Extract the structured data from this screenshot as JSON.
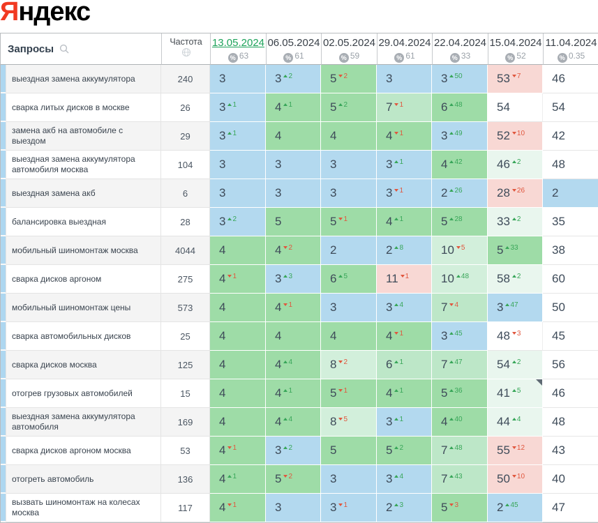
{
  "logo": {
    "part1": "Я",
    "part2": "ндекс"
  },
  "accent_colors": {
    "top3_blue": "#b3d9ef",
    "top10_green": "#9edca7",
    "mid_green": "#bde7c8",
    "low_green": "#d2efdb",
    "improved_pale": "#e9f6ee",
    "dropped_pink": "#f8d8d4",
    "change_up_green": "#38a659",
    "change_down_red": "#e0573e",
    "active_date_green": "#1ea35b",
    "yandex_red": "#f13a22"
  },
  "table": {
    "queries_header": "Запросы",
    "frequency_header": "Частота",
    "columns": [
      {
        "date": "13.05.2024",
        "visibility": "63",
        "active": true
      },
      {
        "date": "06.05.2024",
        "visibility": "61",
        "active": false
      },
      {
        "date": "02.05.2024",
        "visibility": "59",
        "active": false
      },
      {
        "date": "29.04.2024",
        "visibility": "61",
        "active": false
      },
      {
        "date": "22.04.2024",
        "visibility": "33",
        "active": false
      },
      {
        "date": "15.04.2024",
        "visibility": "52",
        "active": false
      },
      {
        "date": "11.04.2024",
        "visibility": "0.35",
        "active": false
      }
    ],
    "rows": [
      {
        "keyword": "выездная замена аккумулятора",
        "frequency": "240",
        "cells": [
          {
            "v": "3",
            "bg": "b"
          },
          {
            "v": "3",
            "bg": "b",
            "c": "2",
            "d": "u"
          },
          {
            "v": "5",
            "bg": "g",
            "c": "2",
            "d": "d"
          },
          {
            "v": "3",
            "bg": "b"
          },
          {
            "v": "3",
            "bg": "b",
            "c": "50",
            "d": "u"
          },
          {
            "v": "53",
            "bg": "pk",
            "c": "7",
            "d": "d"
          },
          {
            "v": "46",
            "bg": "w"
          }
        ]
      },
      {
        "keyword": "сварка литых дисков в москве",
        "frequency": "26",
        "cells": [
          {
            "v": "3",
            "bg": "b",
            "c": "1",
            "d": "u"
          },
          {
            "v": "4",
            "bg": "g",
            "c": "1",
            "d": "u"
          },
          {
            "v": "5",
            "bg": "g",
            "c": "2",
            "d": "u"
          },
          {
            "v": "7",
            "bg": "lg",
            "c": "1",
            "d": "d"
          },
          {
            "v": "6",
            "bg": "g",
            "c": "48",
            "d": "u"
          },
          {
            "v": "54",
            "bg": "w"
          },
          {
            "v": "54",
            "bg": "w"
          }
        ]
      },
      {
        "keyword": "замена акб на автомобиле с выездом",
        "frequency": "29",
        "cells": [
          {
            "v": "3",
            "bg": "b",
            "c": "1",
            "d": "u"
          },
          {
            "v": "4",
            "bg": "g"
          },
          {
            "v": "4",
            "bg": "g"
          },
          {
            "v": "4",
            "bg": "g",
            "c": "1",
            "d": "d"
          },
          {
            "v": "3",
            "bg": "b",
            "c": "49",
            "d": "u"
          },
          {
            "v": "52",
            "bg": "pk",
            "c": "10",
            "d": "d"
          },
          {
            "v": "42",
            "bg": "w"
          }
        ]
      },
      {
        "keyword": "выездная замена аккумулятора автомобиля москва",
        "frequency": "104",
        "cells": [
          {
            "v": "3",
            "bg": "b"
          },
          {
            "v": "3",
            "bg": "b"
          },
          {
            "v": "3",
            "bg": "b"
          },
          {
            "v": "3",
            "bg": "b",
            "c": "1",
            "d": "u"
          },
          {
            "v": "4",
            "bg": "g",
            "c": "42",
            "d": "u"
          },
          {
            "v": "46",
            "bg": "pg",
            "c": "2",
            "d": "u"
          },
          {
            "v": "48",
            "bg": "w"
          }
        ]
      },
      {
        "keyword": "выездная замена акб",
        "frequency": "6",
        "cells": [
          {
            "v": "3",
            "bg": "b"
          },
          {
            "v": "3",
            "bg": "b"
          },
          {
            "v": "3",
            "bg": "b"
          },
          {
            "v": "3",
            "bg": "b",
            "c": "1",
            "d": "d"
          },
          {
            "v": "2",
            "bg": "b",
            "c": "26",
            "d": "u"
          },
          {
            "v": "28",
            "bg": "pk",
            "c": "26",
            "d": "d"
          },
          {
            "v": "2",
            "bg": "b"
          }
        ]
      },
      {
        "keyword": "балансировка выездная",
        "frequency": "28",
        "cells": [
          {
            "v": "3",
            "bg": "b",
            "c": "2",
            "d": "u"
          },
          {
            "v": "5",
            "bg": "g"
          },
          {
            "v": "5",
            "bg": "g",
            "c": "1",
            "d": "d"
          },
          {
            "v": "4",
            "bg": "g",
            "c": "1",
            "d": "u"
          },
          {
            "v": "5",
            "bg": "g",
            "c": "28",
            "d": "u"
          },
          {
            "v": "33",
            "bg": "pg",
            "c": "2",
            "d": "u"
          },
          {
            "v": "35",
            "bg": "w"
          }
        ]
      },
      {
        "keyword": "мобильный шиномонтаж москва",
        "frequency": "4044",
        "cells": [
          {
            "v": "4",
            "bg": "g"
          },
          {
            "v": "4",
            "bg": "g",
            "c": "2",
            "d": "d"
          },
          {
            "v": "2",
            "bg": "b"
          },
          {
            "v": "2",
            "bg": "b",
            "c": "8",
            "d": "u"
          },
          {
            "v": "10",
            "bg": "llg",
            "c": "5",
            "d": "d"
          },
          {
            "v": "5",
            "bg": "g",
            "c": "33",
            "d": "u"
          },
          {
            "v": "38",
            "bg": "w"
          }
        ]
      },
      {
        "keyword": "сварка дисков аргоном",
        "frequency": "275",
        "cells": [
          {
            "v": "4",
            "bg": "g",
            "c": "1",
            "d": "d"
          },
          {
            "v": "3",
            "bg": "b",
            "c": "3",
            "d": "u"
          },
          {
            "v": "6",
            "bg": "g",
            "c": "5",
            "d": "u"
          },
          {
            "v": "11",
            "bg": "pk",
            "c": "1",
            "d": "d"
          },
          {
            "v": "10",
            "bg": "llg",
            "c": "48",
            "d": "u"
          },
          {
            "v": "58",
            "bg": "pg",
            "c": "2",
            "d": "u"
          },
          {
            "v": "60",
            "bg": "w"
          }
        ]
      },
      {
        "keyword": "мобильный шиномонтаж цены",
        "frequency": "573",
        "cells": [
          {
            "v": "4",
            "bg": "g"
          },
          {
            "v": "4",
            "bg": "g",
            "c": "1",
            "d": "d"
          },
          {
            "v": "3",
            "bg": "b"
          },
          {
            "v": "3",
            "bg": "b",
            "c": "4",
            "d": "u"
          },
          {
            "v": "7",
            "bg": "lg",
            "c": "4",
            "d": "d"
          },
          {
            "v": "3",
            "bg": "b",
            "c": "47",
            "d": "u"
          },
          {
            "v": "50",
            "bg": "w"
          }
        ]
      },
      {
        "keyword": "сварка автомобильных дисков",
        "frequency": "25",
        "cells": [
          {
            "v": "4",
            "bg": "g"
          },
          {
            "v": "4",
            "bg": "g"
          },
          {
            "v": "4",
            "bg": "g"
          },
          {
            "v": "4",
            "bg": "g",
            "c": "1",
            "d": "d"
          },
          {
            "v": "3",
            "bg": "b",
            "c": "45",
            "d": "u"
          },
          {
            "v": "48",
            "bg": "w",
            "c": "3",
            "d": "d"
          },
          {
            "v": "45",
            "bg": "w"
          }
        ]
      },
      {
        "keyword": "сварка дисков москва",
        "frequency": "125",
        "cells": [
          {
            "v": "4",
            "bg": "g"
          },
          {
            "v": "4",
            "bg": "g",
            "c": "4",
            "d": "u"
          },
          {
            "v": "8",
            "bg": "llg",
            "c": "2",
            "d": "d"
          },
          {
            "v": "6",
            "bg": "lg",
            "c": "1",
            "d": "u"
          },
          {
            "v": "7",
            "bg": "lg",
            "c": "47",
            "d": "u"
          },
          {
            "v": "54",
            "bg": "pg",
            "c": "2",
            "d": "u"
          },
          {
            "v": "56",
            "bg": "w"
          }
        ]
      },
      {
        "keyword": "отогрев грузовых автомобилей",
        "frequency": "15",
        "cells": [
          {
            "v": "4",
            "bg": "g"
          },
          {
            "v": "4",
            "bg": "g",
            "c": "1",
            "d": "u"
          },
          {
            "v": "5",
            "bg": "g",
            "c": "1",
            "d": "d"
          },
          {
            "v": "4",
            "bg": "g",
            "c": "1",
            "d": "u"
          },
          {
            "v": "5",
            "bg": "g",
            "c": "36",
            "d": "u"
          },
          {
            "v": "41",
            "bg": "pg",
            "c": "5",
            "d": "u",
            "m": true
          },
          {
            "v": "46",
            "bg": "w"
          }
        ]
      },
      {
        "keyword": "выездная замена аккумулятора автомобиля",
        "frequency": "169",
        "cells": [
          {
            "v": "4",
            "bg": "g"
          },
          {
            "v": "4",
            "bg": "g",
            "c": "4",
            "d": "u"
          },
          {
            "v": "8",
            "bg": "llg",
            "c": "5",
            "d": "d"
          },
          {
            "v": "3",
            "bg": "b",
            "c": "1",
            "d": "u"
          },
          {
            "v": "4",
            "bg": "g",
            "c": "40",
            "d": "u"
          },
          {
            "v": "44",
            "bg": "pg",
            "c": "4",
            "d": "u"
          },
          {
            "v": "48",
            "bg": "w"
          }
        ]
      },
      {
        "keyword": "сварка дисков аргоном москва",
        "frequency": "53",
        "cells": [
          {
            "v": "4",
            "bg": "g",
            "c": "1",
            "d": "d"
          },
          {
            "v": "3",
            "bg": "b",
            "c": "2",
            "d": "u"
          },
          {
            "v": "5",
            "bg": "g"
          },
          {
            "v": "5",
            "bg": "g",
            "c": "2",
            "d": "u"
          },
          {
            "v": "7",
            "bg": "lg",
            "c": "48",
            "d": "u"
          },
          {
            "v": "55",
            "bg": "pk",
            "c": "12",
            "d": "d"
          },
          {
            "v": "43",
            "bg": "w"
          }
        ]
      },
      {
        "keyword": "отогреть автомобиль",
        "frequency": "136",
        "cells": [
          {
            "v": "4",
            "bg": "g",
            "c": "1",
            "d": "u"
          },
          {
            "v": "5",
            "bg": "g",
            "c": "2",
            "d": "d"
          },
          {
            "v": "3",
            "bg": "b"
          },
          {
            "v": "3",
            "bg": "b",
            "c": "4",
            "d": "u"
          },
          {
            "v": "7",
            "bg": "lg",
            "c": "43",
            "d": "u"
          },
          {
            "v": "50",
            "bg": "pk",
            "c": "10",
            "d": "d"
          },
          {
            "v": "40",
            "bg": "w"
          }
        ]
      },
      {
        "keyword": "вызвать шиномонтаж на колесах москва",
        "frequency": "117",
        "cells": [
          {
            "v": "4",
            "bg": "g",
            "c": "1",
            "d": "d"
          },
          {
            "v": "3",
            "bg": "b"
          },
          {
            "v": "3",
            "bg": "b",
            "c": "1",
            "d": "d"
          },
          {
            "v": "2",
            "bg": "b",
            "c": "3",
            "d": "u"
          },
          {
            "v": "5",
            "bg": "g",
            "c": "3",
            "d": "d"
          },
          {
            "v": "2",
            "bg": "b",
            "c": "45",
            "d": "u"
          },
          {
            "v": "47",
            "bg": "w"
          }
        ]
      }
    ]
  }
}
